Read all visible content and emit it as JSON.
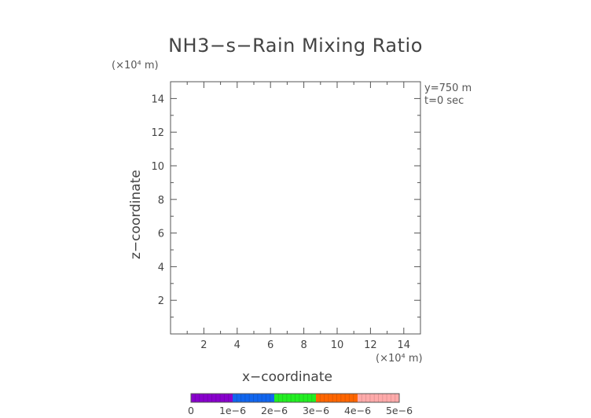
{
  "chart_data": {
    "type": "heatmap",
    "title": "NH3−s−Rain Mixing Ratio",
    "xlabel": "x−coordinate",
    "ylabel": "z−coordinate",
    "x_unit_label": "(×10⁴ m)",
    "y_unit_label": "(×10⁴ m)",
    "xlim": [
      0,
      15
    ],
    "ylim": [
      0,
      15
    ],
    "x_ticks": [
      "2",
      "4",
      "6",
      "8",
      "10",
      "12",
      "14"
    ],
    "y_ticks": [
      "2",
      "4",
      "6",
      "8",
      "10",
      "12",
      "14"
    ],
    "annotations": [
      "y=750 m",
      "t=0 sec"
    ],
    "values": [],
    "colorbar": {
      "ticks": [
        "0",
        "1e−6",
        "2e−6",
        "3e−6",
        "4e−6",
        "5e−6"
      ],
      "colors": [
        "#8800cc",
        "#1166ee",
        "#22ee22",
        "#ff6600",
        "#ffaaaa"
      ]
    }
  }
}
